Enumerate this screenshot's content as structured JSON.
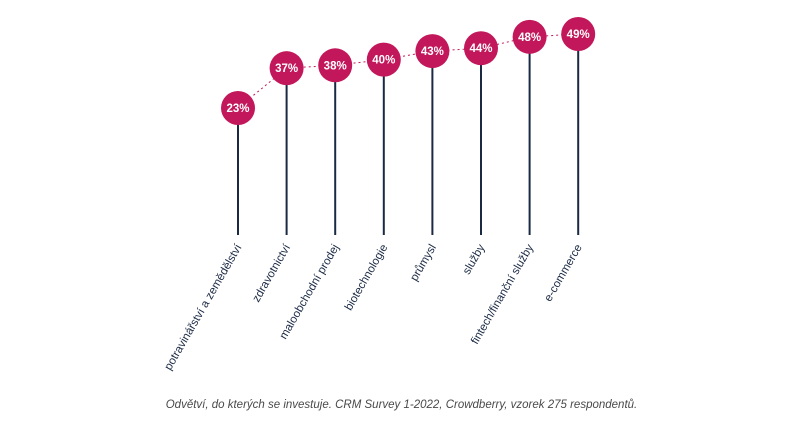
{
  "chart_data": {
    "type": "lollipop",
    "categories": [
      "potravinářství a zemědělství",
      "zdravotnictví",
      "maloobchodní prodej",
      "biotechnologie",
      "průmysl",
      "služby",
      "fintech/finanční služby",
      "e-commerce"
    ],
    "values": [
      23,
      37,
      38,
      40,
      43,
      44,
      48,
      49
    ],
    "value_labels": [
      "23%",
      "37%",
      "38%",
      "40%",
      "43%",
      "44%",
      "48%",
      "49%"
    ],
    "ylim": [
      0,
      49
    ],
    "grid": false,
    "colors": {
      "marker": "#c2185b",
      "stem": "#1b2a44",
      "trend": "#c2185b",
      "label_text": "#1b2a44",
      "marker_text": "#ffffff"
    }
  },
  "caption": "Odvětví, do kterých se investuje. CRM Survey 1-2022, Crowdberry, vzorek 275 respondentů."
}
